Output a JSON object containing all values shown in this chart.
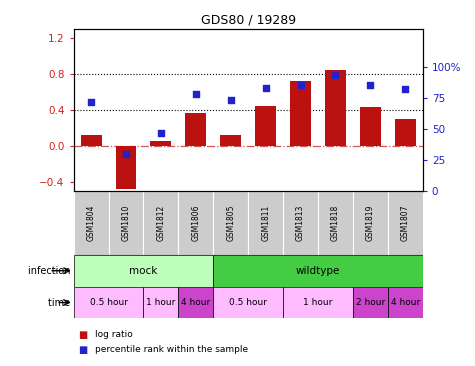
{
  "title": "GDS80 / 19289",
  "samples": [
    "GSM1804",
    "GSM1810",
    "GSM1812",
    "GSM1806",
    "GSM1805",
    "GSM1811",
    "GSM1813",
    "GSM1818",
    "GSM1819",
    "GSM1807"
  ],
  "log_ratio": [
    0.13,
    -0.48,
    0.06,
    0.37,
    0.13,
    0.45,
    0.72,
    0.85,
    0.44,
    0.3
  ],
  "percentile": [
    72,
    30,
    47,
    78,
    73,
    83,
    85,
    93,
    85,
    82
  ],
  "bar_color": "#bb1111",
  "dot_color": "#2222cc",
  "ylim_left": [
    -0.5,
    1.3
  ],
  "ylim_right": [
    0,
    130
  ],
  "yticks_left": [
    -0.4,
    0.0,
    0.4,
    0.8,
    1.2
  ],
  "yticks_right": [
    0,
    25,
    50,
    75,
    100
  ],
  "bg_color": "#ffffff",
  "tick_color_left": "#cc2222",
  "tick_color_right": "#2222cc",
  "sample_box_color": "#cccccc",
  "infection_row": [
    {
      "label": "mock",
      "span": [
        0,
        4
      ],
      "color": "#bbffbb"
    },
    {
      "label": "wildtype",
      "span": [
        4,
        10
      ],
      "color": "#44cc44"
    }
  ],
  "time_row": [
    {
      "label": "0.5 hour",
      "span": [
        0,
        2
      ],
      "color": "#ffbbff"
    },
    {
      "label": "1 hour",
      "span": [
        2,
        3
      ],
      "color": "#ffbbff"
    },
    {
      "label": "4 hour",
      "span": [
        3,
        4
      ],
      "color": "#cc44cc"
    },
    {
      "label": "0.5 hour",
      "span": [
        4,
        6
      ],
      "color": "#ffbbff"
    },
    {
      "label": "1 hour",
      "span": [
        6,
        8
      ],
      "color": "#ffbbff"
    },
    {
      "label": "2 hour",
      "span": [
        8,
        9
      ],
      "color": "#cc44cc"
    },
    {
      "label": "4 hour",
      "span": [
        9,
        10
      ],
      "color": "#cc44cc"
    }
  ]
}
